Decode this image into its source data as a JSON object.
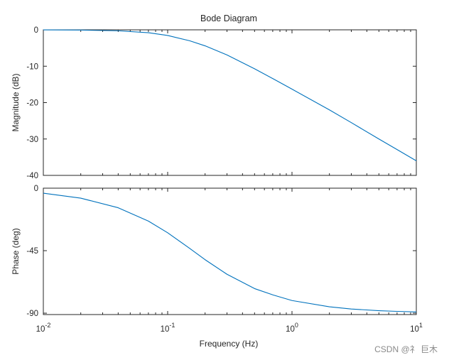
{
  "chart_data": {
    "type": "line",
    "title": "Bode Diagram",
    "xlabel": "Frequency  (Hz)",
    "xscale": "log",
    "xlim": [
      0.01,
      10
    ],
    "x_ticks": [
      {
        "value": 0.01,
        "base": "10",
        "exp": "-2"
      },
      {
        "value": 0.1,
        "base": "10",
        "exp": "-1"
      },
      {
        "value": 1,
        "base": "10",
        "exp": "0"
      },
      {
        "value": 10,
        "base": "10",
        "exp": "1"
      }
    ],
    "grid": false,
    "line_color": "#0072BD",
    "subplots": [
      {
        "name": "magnitude",
        "ylabel": "Magnitude (dB)",
        "ylim": [
          -40,
          0
        ],
        "yticks": [
          0,
          -10,
          -20,
          -30,
          -40
        ],
        "series": [
          {
            "x": [
              0.01,
              0.02,
              0.04,
              0.07,
              0.1,
              0.15,
              0.2,
              0.3,
              0.5,
              0.7,
              1,
              2,
              3,
              5,
              7,
              10
            ],
            "y": [
              -0.02,
              -0.07,
              -0.27,
              -0.8,
              -1.55,
              -3.0,
              -4.4,
              -6.9,
              -10.7,
              -13.4,
              -16.3,
              -22.0,
              -25.5,
              -30.0,
              -32.9,
              -36.0
            ]
          }
        ]
      },
      {
        "name": "phase",
        "ylabel": "Phase (deg)",
        "ylim": [
          -91,
          0
        ],
        "yticks": [
          0,
          -45,
          -90
        ],
        "series": [
          {
            "x": [
              0.01,
              0.02,
              0.04,
              0.07,
              0.1,
              0.15,
              0.2,
              0.3,
              0.5,
              0.7,
              1,
              2,
              3,
              5,
              7,
              10
            ],
            "y": [
              -3.6,
              -7.2,
              -14.1,
              -23.7,
              -32.1,
              -43.3,
              -51.5,
              -62.0,
              -72.3,
              -76.8,
              -80.9,
              -85.4,
              -87.0,
              -88.2,
              -88.7,
              -89.1
            ]
          }
        ]
      }
    ]
  },
  "watermark": "CSDN @礻 巨木"
}
